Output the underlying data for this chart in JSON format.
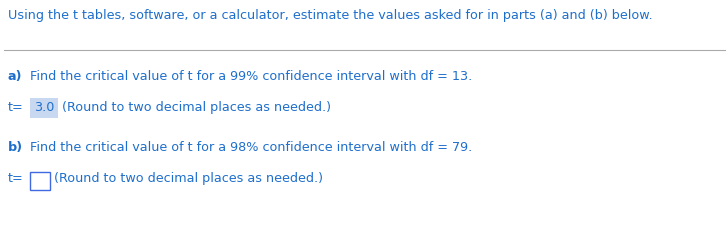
{
  "header_text": "Using the t tables, software, or a calculator, estimate the values asked for in parts (a) and (b) below.",
  "header_color": "#1E6FCC",
  "text_color": "#1E6FCC",
  "bold_color": "#1E3A8A",
  "highlight_color": "#C8D8F0",
  "box_edge_color": "#4169E1",
  "background_color": "#FFFFFF",
  "line_color": "#AAAAAA",
  "part_a_question": "Find the critical value of t for a 99% confidence interval with df = 13.",
  "part_b_question": "Find the critical value of t for a 98% confidence interval with df = 79.",
  "t_value_a": "3.0",
  "round_note": "(Round to two decimal places as needed.)",
  "figsize": [
    7.26,
    2.38
  ],
  "dpi": 100,
  "fontsize": 9.2
}
